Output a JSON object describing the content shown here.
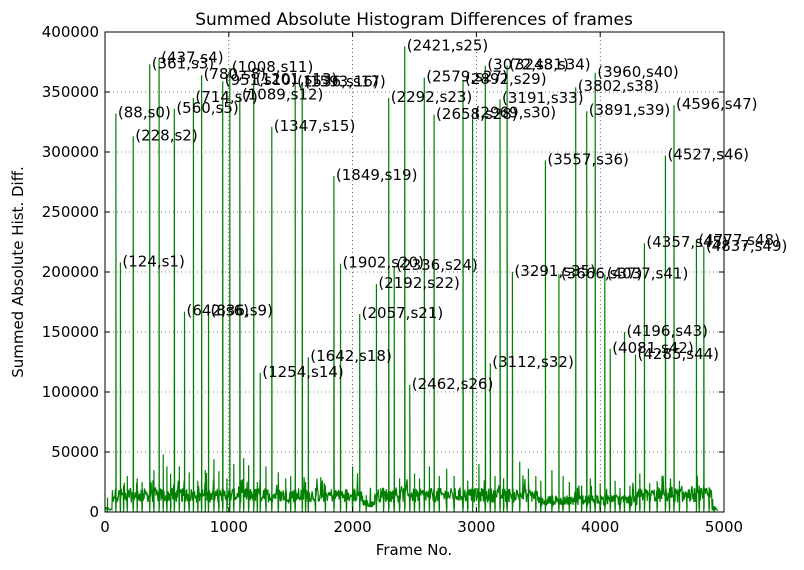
{
  "chart_data": {
    "type": "line",
    "title": "Summed Absolute Histogram Differences of frames",
    "xlabel": "Frame No.",
    "ylabel": "Summed Absolute Hist. Diff.",
    "xlim": [
      0,
      5000
    ],
    "ylim": [
      0,
      400000
    ],
    "x_ticks": [
      0,
      1000,
      2000,
      3000,
      4000,
      5000
    ],
    "y_ticks": [
      0,
      50000,
      100000,
      150000,
      200000,
      250000,
      300000,
      350000,
      400000
    ],
    "x_tick_labels": [
      "0",
      "1000",
      "2000",
      "3000",
      "4000",
      "5000"
    ],
    "y_tick_labels": [
      "0",
      "50000",
      "100000",
      "150000",
      "200000",
      "250000",
      "300000",
      "350000",
      "400000"
    ],
    "grid": true,
    "line_color": "#008000",
    "peaks": [
      {
        "frame": 88,
        "value": 332000,
        "label": "(88,s0)"
      },
      {
        "frame": 124,
        "value": 208000,
        "label": "(124,s1)"
      },
      {
        "frame": 228,
        "value": 313000,
        "label": "(228,s2)"
      },
      {
        "frame": 361,
        "value": 373000,
        "label": "(361,s3)"
      },
      {
        "frame": 437,
        "value": 378000,
        "label": "(437,s4)"
      },
      {
        "frame": 560,
        "value": 336000,
        "label": "(560,s5)"
      },
      {
        "frame": 642,
        "value": 167000,
        "label": "(642,s6)"
      },
      {
        "frame": 714,
        "value": 345000,
        "label": "(714,s7)"
      },
      {
        "frame": 780,
        "value": 364000,
        "label": "(780,s8)"
      },
      {
        "frame": 836,
        "value": 167000,
        "label": "(836,s9)"
      },
      {
        "frame": 951,
        "value": 359000,
        "label": "(951,s10)"
      },
      {
        "frame": 1008,
        "value": 370000,
        "label": "(1008,s11)"
      },
      {
        "frame": 1089,
        "value": 347000,
        "label": "(1089,s12)"
      },
      {
        "frame": 1201,
        "value": 360000,
        "label": "(1201,s13)"
      },
      {
        "frame": 1254,
        "value": 116000,
        "label": "(1254,s14)"
      },
      {
        "frame": 1347,
        "value": 321000,
        "label": "(1347,s15)"
      },
      {
        "frame": 1536,
        "value": 358000,
        "label": "(1536,s16)"
      },
      {
        "frame": 1593,
        "value": 358000,
        "label": "(1593,s17)"
      },
      {
        "frame": 1642,
        "value": 129000,
        "label": "(1642,s18)"
      },
      {
        "frame": 1849,
        "value": 280000,
        "label": "(1849,s19)"
      },
      {
        "frame": 1902,
        "value": 207000,
        "label": "(1902,s20)"
      },
      {
        "frame": 2057,
        "value": 165000,
        "label": "(2057,s21)"
      },
      {
        "frame": 2192,
        "value": 190000,
        "label": "(2192,s22)"
      },
      {
        "frame": 2292,
        "value": 345000,
        "label": "(2292,s23)"
      },
      {
        "frame": 2336,
        "value": 205000,
        "label": "(2336,s24)"
      },
      {
        "frame": 2421,
        "value": 388000,
        "label": "(2421,s25)"
      },
      {
        "frame": 2462,
        "value": 106000,
        "label": "(2462,s26)"
      },
      {
        "frame": 2579,
        "value": 362000,
        "label": "(2579,s27)"
      },
      {
        "frame": 2658,
        "value": 331000,
        "label": "(2658,s28)"
      },
      {
        "frame": 2892,
        "value": 360000,
        "label": "(2892,s29)"
      },
      {
        "frame": 2969,
        "value": 332000,
        "label": "(2969,s30)"
      },
      {
        "frame": 3072,
        "value": 372000,
        "label": "(3072,s31)"
      },
      {
        "frame": 3112,
        "value": 124000,
        "label": "(3112,s32)"
      },
      {
        "frame": 3191,
        "value": 344000,
        "label": "(3191,s33)"
      },
      {
        "frame": 3248,
        "value": 372000,
        "label": "(3248,s34)"
      },
      {
        "frame": 3291,
        "value": 200000,
        "label": "(3291,s35)"
      },
      {
        "frame": 3557,
        "value": 293000,
        "label": "(3557,s36)"
      },
      {
        "frame": 3666,
        "value": 198000,
        "label": "(3666,s37)"
      },
      {
        "frame": 3802,
        "value": 354000,
        "label": "(3802,s38)"
      },
      {
        "frame": 3891,
        "value": 334000,
        "label": "(3891,s39)"
      },
      {
        "frame": 3960,
        "value": 366000,
        "label": "(3960,s40)"
      },
      {
        "frame": 4037,
        "value": 198000,
        "label": "(4037,s41)"
      },
      {
        "frame": 4081,
        "value": 136000,
        "label": "(4081,s42)"
      },
      {
        "frame": 4196,
        "value": 150000,
        "label": "(4196,s43)"
      },
      {
        "frame": 4285,
        "value": 131000,
        "label": "(4285,s44)"
      },
      {
        "frame": 4357,
        "value": 224000,
        "label": "(4357,s45)"
      },
      {
        "frame": 4527,
        "value": 297000,
        "label": "(4527,s46)"
      },
      {
        "frame": 4596,
        "value": 339000,
        "label": "(4596,s47)"
      },
      {
        "frame": 4777,
        "value": 226000,
        "label": "(4777,s48)"
      },
      {
        "frame": 4837,
        "value": 221000,
        "label": "(4837,s49)"
      }
    ],
    "secondary_spikes": [
      {
        "frame": 20,
        "value": 12000
      },
      {
        "frame": 150,
        "value": 22000
      },
      {
        "frame": 180,
        "value": 30000
      },
      {
        "frame": 260,
        "value": 28000
      },
      {
        "frame": 300,
        "value": 25000
      },
      {
        "frame": 395,
        "value": 35000
      },
      {
        "frame": 470,
        "value": 48000
      },
      {
        "frame": 500,
        "value": 38000
      },
      {
        "frame": 530,
        "value": 32000
      },
      {
        "frame": 600,
        "value": 38000
      },
      {
        "frame": 680,
        "value": 33000
      },
      {
        "frame": 750,
        "value": 26000
      },
      {
        "frame": 810,
        "value": 35000
      },
      {
        "frame": 880,
        "value": 44000
      },
      {
        "frame": 920,
        "value": 34000
      },
      {
        "frame": 985,
        "value": 28000
      },
      {
        "frame": 1040,
        "value": 40000
      },
      {
        "frame": 1120,
        "value": 45000
      },
      {
        "frame": 1160,
        "value": 39000
      },
      {
        "frame": 1230,
        "value": 25000
      },
      {
        "frame": 1300,
        "value": 38000
      },
      {
        "frame": 1400,
        "value": 33000
      },
      {
        "frame": 1460,
        "value": 28000
      },
      {
        "frame": 1500,
        "value": 30000
      },
      {
        "frame": 1620,
        "value": 25000
      },
      {
        "frame": 1700,
        "value": 20000
      },
      {
        "frame": 1780,
        "value": 22000
      },
      {
        "frame": 1950,
        "value": 18000
      },
      {
        "frame": 2000,
        "value": 38000
      },
      {
        "frame": 2110,
        "value": 14000
      },
      {
        "frame": 2250,
        "value": 20000
      },
      {
        "frame": 2380,
        "value": 28000
      },
      {
        "frame": 2500,
        "value": 32000
      },
      {
        "frame": 2540,
        "value": 28000
      },
      {
        "frame": 2620,
        "value": 38000
      },
      {
        "frame": 2700,
        "value": 30000
      },
      {
        "frame": 2760,
        "value": 36000
      },
      {
        "frame": 2820,
        "value": 30000
      },
      {
        "frame": 2930,
        "value": 26000
      },
      {
        "frame": 3020,
        "value": 40000
      },
      {
        "frame": 3150,
        "value": 30000
      },
      {
        "frame": 3220,
        "value": 28000
      },
      {
        "frame": 3350,
        "value": 42000
      },
      {
        "frame": 3420,
        "value": 36000
      },
      {
        "frame": 3480,
        "value": 30000
      },
      {
        "frame": 3520,
        "value": 26000
      },
      {
        "frame": 3610,
        "value": 35000
      },
      {
        "frame": 3700,
        "value": 30000
      },
      {
        "frame": 3750,
        "value": 25000
      },
      {
        "frame": 3850,
        "value": 22000
      },
      {
        "frame": 3920,
        "value": 28000
      },
      {
        "frame": 4000,
        "value": 24000
      },
      {
        "frame": 4120,
        "value": 26000
      },
      {
        "frame": 4160,
        "value": 20000
      },
      {
        "frame": 4240,
        "value": 22000
      },
      {
        "frame": 4320,
        "value": 32000
      },
      {
        "frame": 4400,
        "value": 24000
      },
      {
        "frame": 4460,
        "value": 18000
      },
      {
        "frame": 4560,
        "value": 20000
      },
      {
        "frame": 4640,
        "value": 26000
      },
      {
        "frame": 4700,
        "value": 16000
      },
      {
        "frame": 4800,
        "value": 22000
      },
      {
        "frame": 4880,
        "value": 10000
      },
      {
        "frame": 4920,
        "value": 5000
      }
    ]
  }
}
